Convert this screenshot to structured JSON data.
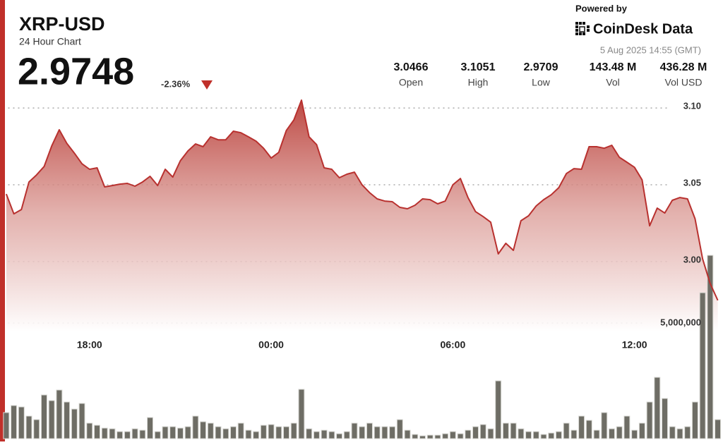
{
  "chart_data": {
    "type": "line",
    "title": "XRP-USD",
    "subtitle": "24 Hour Chart",
    "price": "2.9748",
    "change": "-2.36%",
    "powered_by": "Powered by",
    "brand": "CoinDesk Data",
    "timestamp": "5 Aug 2025 14:55 (GMT)",
    "stats": [
      {
        "value": "3.0466",
        "label": "Open"
      },
      {
        "value": "3.1051",
        "label": "High"
      },
      {
        "value": "2.9709",
        "label": "Low"
      },
      {
        "value": "143.48 M",
        "label": "Vol"
      },
      {
        "value": "436.28 M",
        "label": "Vol USD"
      }
    ],
    "x": [
      15.25,
      15.5,
      15.75,
      16,
      16.25,
      16.5,
      16.75,
      17,
      17.25,
      17.5,
      17.75,
      18,
      18.25,
      18.5,
      18.75,
      19,
      19.25,
      19.5,
      19.75,
      20,
      20.25,
      20.5,
      20.75,
      21,
      21.25,
      21.5,
      21.75,
      22,
      22.25,
      22.5,
      22.75,
      23,
      23.25,
      23.5,
      23.75,
      24,
      24.25,
      24.5,
      24.75,
      25,
      25.25,
      25.5,
      25.75,
      26,
      26.25,
      26.5,
      26.75,
      27,
      27.25,
      27.5,
      27.75,
      28,
      28.25,
      28.5,
      28.75,
      29,
      29.25,
      29.5,
      29.75,
      30,
      30.25,
      30.5,
      30.75,
      31,
      31.25,
      31.5,
      31.75,
      32,
      32.25,
      32.5,
      32.75,
      33,
      33.25,
      33.5,
      33.75,
      34,
      34.25,
      34.5,
      34.75,
      35,
      35.25,
      35.5,
      35.75,
      36,
      36.25,
      36.5,
      36.75,
      37,
      37.25,
      37.5,
      37.75,
      38,
      38.25,
      38.5,
      38.75
    ],
    "series": [
      {
        "color": "#b8312f",
        "values": [
          3.044,
          3.0311,
          3.0339,
          3.0518,
          3.0564,
          3.0619,
          3.0752,
          3.0858,
          3.077,
          3.0706,
          3.0637,
          3.0601,
          3.061,
          3.0486,
          3.0495,
          3.0504,
          3.0509,
          3.0491,
          3.0518,
          3.0555,
          3.0495,
          3.0601,
          3.055,
          3.0656,
          3.072,
          3.0766,
          3.0748,
          3.0812,
          3.0793,
          3.0793,
          3.0849,
          3.0839,
          3.0812,
          3.0784,
          3.0738,
          3.0674,
          3.0711,
          3.0853,
          3.0922,
          3.1051,
          3.0812,
          3.0761,
          3.061,
          3.0601,
          3.0546,
          3.0569,
          3.0582,
          3.05,
          3.0449,
          3.0408,
          3.0394,
          3.039,
          3.0353,
          3.0344,
          3.0367,
          3.0408,
          3.0403,
          3.0376,
          3.0394,
          3.05,
          3.0541,
          3.0417,
          3.0325,
          3.0293,
          3.0256,
          3.005,
          3.0119,
          3.0073,
          3.0266,
          3.0298,
          3.0362,
          3.0403,
          3.0435,
          3.0481,
          3.0573,
          3.0605,
          3.0601,
          3.0748,
          3.0748,
          3.0738,
          3.0757,
          3.0679,
          3.0647,
          3.0614,
          3.0532,
          3.0233,
          3.0348,
          3.0316,
          3.0399,
          3.0417,
          3.0408,
          3.0279,
          3.0018,
          2.9857,
          2.9748
        ]
      },
      {
        "color": "#6e6d65",
        "axis": "y2",
        "values": [
          1128000,
          1433000,
          1372000,
          976000,
          823000,
          1890000,
          1646000,
          2104000,
          1585000,
          1280000,
          1524000,
          671000,
          579000,
          457000,
          427000,
          305000,
          305000,
          427000,
          366000,
          915000,
          305000,
          518000,
          518000,
          457000,
          518000,
          976000,
          732000,
          671000,
          518000,
          427000,
          518000,
          671000,
          366000,
          305000,
          579000,
          610000,
          518000,
          518000,
          671000,
          2134000,
          427000,
          305000,
          366000,
          305000,
          213000,
          305000,
          671000,
          518000,
          671000,
          518000,
          518000,
          518000,
          823000,
          366000,
          183000,
          122000,
          152000,
          152000,
          213000,
          305000,
          213000,
          366000,
          518000,
          610000,
          427000,
          2500000,
          671000,
          671000,
          427000,
          305000,
          305000,
          183000,
          244000,
          305000,
          671000,
          366000,
          976000,
          793000,
          366000,
          1128000,
          427000,
          518000,
          976000,
          366000,
          671000,
          1585000,
          2652000,
          1738000,
          518000,
          427000,
          518000,
          1585000,
          6311000,
          7927000,
          823000
        ]
      }
    ],
    "xlim": [
      15.23,
      38.83
    ],
    "xticks": [
      {
        "value": 18,
        "label": "18:00"
      },
      {
        "value": 24,
        "label": "00:00"
      },
      {
        "value": 30,
        "label": "06:00"
      },
      {
        "value": 36,
        "label": "12:00"
      }
    ],
    "ylim": [
      2.9591,
      3.1106
    ],
    "yticks": [
      {
        "value": 3,
        "label": "3.00"
      },
      3.05,
      {
        "value": 3.1,
        "label": "3.10"
      }
    ],
    "y2lim": [
      0,
      8600000
    ],
    "y2ticks": [
      {
        "value": 5000000,
        "label": "5,000,000"
      }
    ],
    "grid": true
  }
}
